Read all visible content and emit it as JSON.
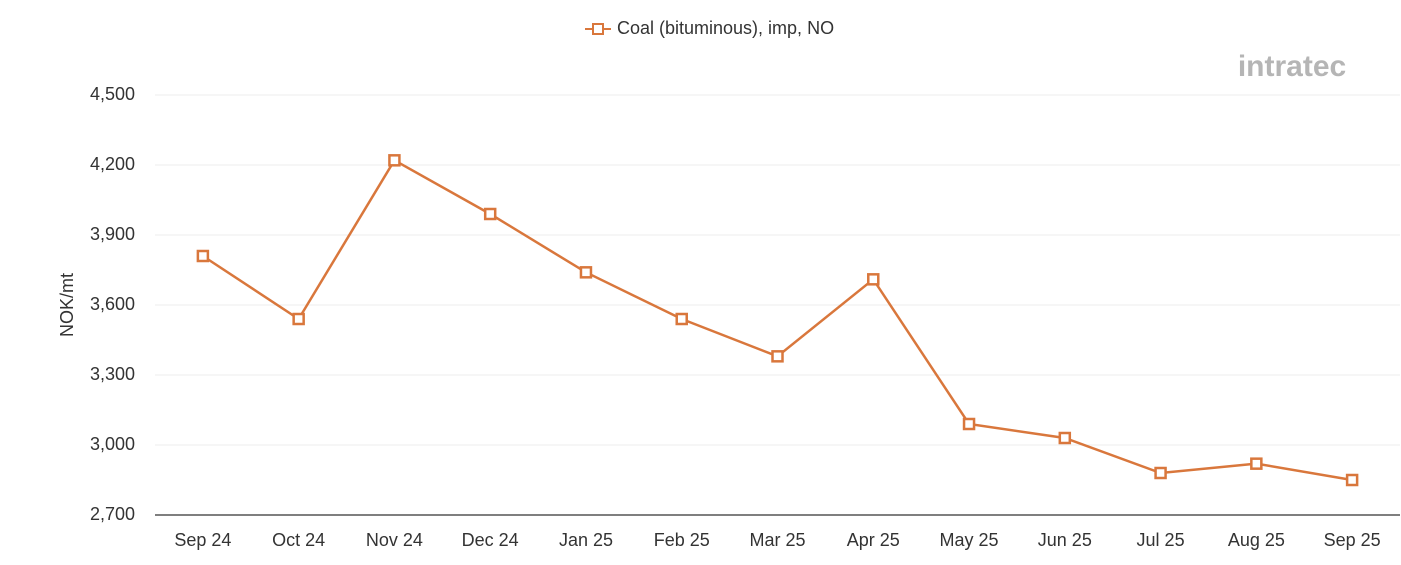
{
  "chart_data": {
    "type": "line",
    "series": [
      {
        "name": "Coal (bituminous), imp, NO",
        "color": "#d9773c",
        "values": [
          3810,
          3540,
          4220,
          3990,
          3740,
          3540,
          3380,
          3710,
          3090,
          3030,
          2880,
          2920,
          2850
        ]
      }
    ],
    "categories": [
      "Sep 24",
      "Oct 24",
      "Nov 24",
      "Dec 24",
      "Jan 25",
      "Feb 25",
      "Mar 25",
      "Apr 25",
      "May 25",
      "Jun 25",
      "Jul 25",
      "Aug 25",
      "Sep 25"
    ],
    "y_label": "NOK/mt",
    "ylim": [
      2700,
      4500
    ],
    "yticks": [
      {
        "value": 2700,
        "label": "2,700"
      },
      {
        "value": 3000,
        "label": "3,000"
      },
      {
        "value": 3300,
        "label": "3,300"
      },
      {
        "value": 3600,
        "label": "3,600"
      },
      {
        "value": 3900,
        "label": "3,900"
      },
      {
        "value": 4200,
        "label": "4,200"
      },
      {
        "value": 4500,
        "label": "4,500"
      }
    ],
    "grid": true,
    "logo": "intratec"
  }
}
